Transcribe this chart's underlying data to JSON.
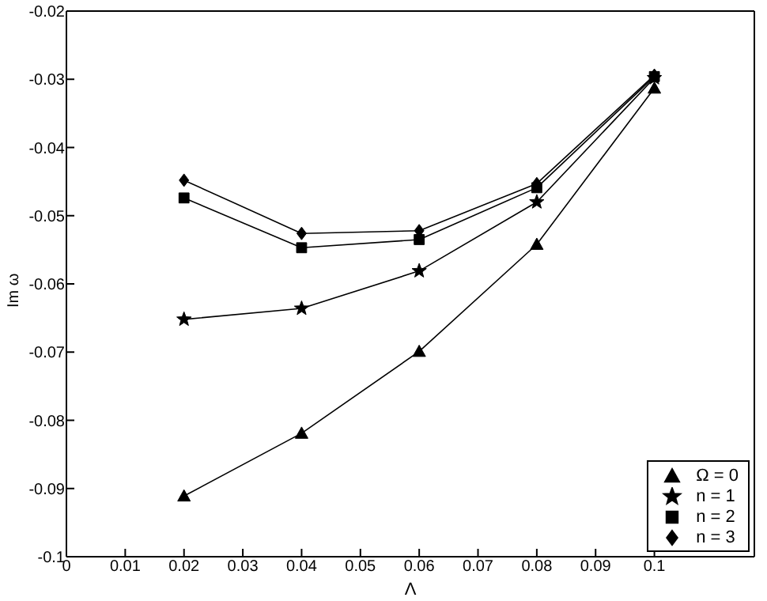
{
  "chart_data": {
    "type": "line",
    "xlabel": "Λ",
    "ylabel": "Im ω",
    "x": [
      0.02,
      0.04,
      0.06,
      0.08,
      0.1
    ],
    "series": [
      {
        "name": "Ω = 0",
        "color": "#000000",
        "marker": "triangle",
        "values": [
          -0.0911,
          -0.0819,
          -0.0699,
          -0.0542,
          -0.0313
        ]
      },
      {
        "name": "n = 1",
        "color": "#000000",
        "marker": "star",
        "values": [
          -0.0652,
          -0.0636,
          -0.0581,
          -0.048,
          -0.0298
        ]
      },
      {
        "name": "n = 2",
        "color": "#000000",
        "marker": "square",
        "values": [
          -0.0474,
          -0.0547,
          -0.0535,
          -0.0459,
          -0.0296
        ]
      },
      {
        "name": "n = 3",
        "color": "#000000",
        "marker": "diamond",
        "values": [
          -0.0448,
          -0.0526,
          -0.0522,
          -0.0453,
          -0.0294
        ]
      }
    ],
    "xlim": [
      0,
      0.117
    ],
    "xticks": [
      0,
      0.01,
      0.02,
      0.03,
      0.04,
      0.05,
      0.06,
      0.07,
      0.08,
      0.09,
      0.1
    ],
    "ylim": [
      -0.1,
      -0.02
    ],
    "yticks": [
      -0.1,
      -0.09,
      -0.08,
      -0.07,
      -0.06,
      -0.05,
      -0.04,
      -0.03,
      -0.02
    ],
    "grid": false,
    "legend": "bottom right",
    "line_style": "solid"
  }
}
